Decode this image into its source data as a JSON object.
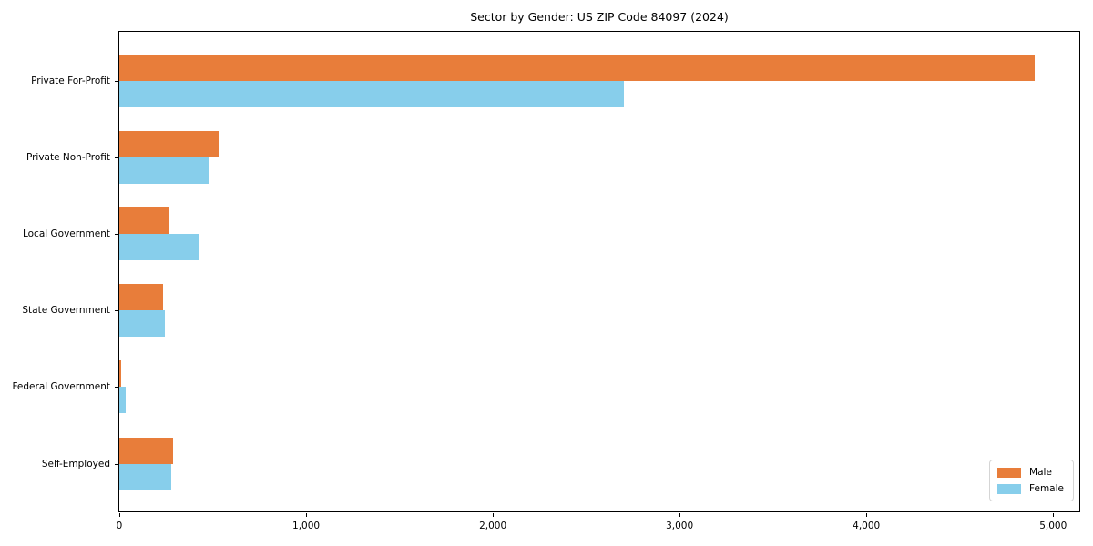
{
  "chart_data": {
    "type": "bar",
    "orientation": "horizontal",
    "title": "Sector by Gender: US ZIP Code 84097 (2024)",
    "categories": [
      "Private For-Profit",
      "Private Non-Profit",
      "Local Government",
      "State Government",
      "Federal Government",
      "Self-Employed"
    ],
    "series": [
      {
        "name": "Male",
        "color": "#e87d3a",
        "values": [
          4900,
          530,
          270,
          235,
          8,
          290
        ]
      },
      {
        "name": "Female",
        "color": "#87ceeb",
        "values": [
          2700,
          480,
          425,
          245,
          35,
          280
        ]
      }
    ],
    "xlabel": "",
    "ylabel": "",
    "xlim": [
      0,
      5150
    ],
    "xticks": [
      0,
      1000,
      2000,
      3000,
      4000,
      5000
    ],
    "xtick_labels": [
      "0",
      "1,000",
      "2,000",
      "3,000",
      "4,000",
      "5,000"
    ],
    "grid": false,
    "legend_position": "lower right",
    "background_color": "#ffffff",
    "spine_color": "#000000"
  }
}
